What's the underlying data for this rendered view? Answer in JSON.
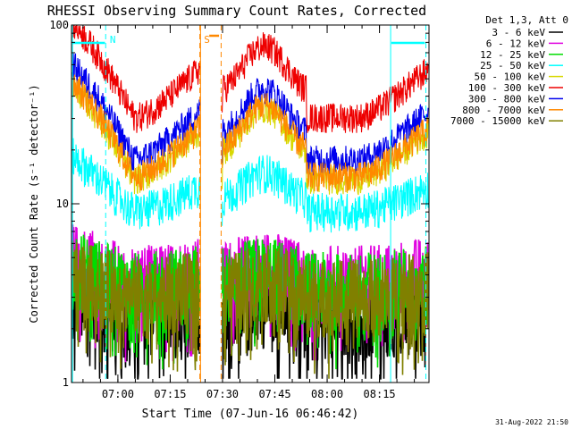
{
  "chart_data": {
    "type": "line",
    "title": "RHESSI Observing Summary Count Rates, Corrected",
    "xlabel": "Start Time (07-Jun-16 06:46:42)",
    "ylabel": "Corrected Count Rate (s⁻¹ detector⁻¹)",
    "yscale": "log",
    "ylim": [
      1,
      100
    ],
    "y_ticks": [
      {
        "value": 1,
        "label": "1"
      },
      {
        "value": 10,
        "label": "10"
      },
      {
        "value": 100,
        "label": "100"
      }
    ],
    "xlim_minutes_after_06_00": [
      46.7,
      149.2
    ],
    "x_ticks": [
      {
        "minutes": 60,
        "label": "07:00"
      },
      {
        "minutes": 75,
        "label": "07:15"
      },
      {
        "minutes": 90,
        "label": "07:30"
      },
      {
        "minutes": 105,
        "label": "07:45"
      },
      {
        "minutes": 120,
        "label": "08:00"
      },
      {
        "minutes": 135,
        "label": "08:15"
      }
    ],
    "legend_title": "Det 1,3, Att 0",
    "legend_placement": "right",
    "series": [
      {
        "name": "3 - 6 keV",
        "color": "#000000",
        "base": 2.2
      },
      {
        "name": "6 - 12 keV",
        "color": "#e000e0",
        "base": 3.6
      },
      {
        "name": "12 - 25 keV",
        "color": "#00dd00",
        "base": 3.3
      },
      {
        "name": "25 - 50 keV",
        "color": "#00ffff",
        "base": 8.0
      },
      {
        "name": "50 - 100 keV",
        "color": "#d8d800",
        "base": 14.0
      },
      {
        "name": "100 - 300 keV",
        "color": "#ee0000",
        "base": 31.0
      },
      {
        "name": "300 - 800 keV",
        "color": "#0000ee",
        "base": 18.0
      },
      {
        "name": "800 - 7000 keV",
        "color": "#ff8800",
        "base": 14.5
      },
      {
        "name": "7000 - 15000 keV",
        "color": "#808000",
        "base": 3.0
      }
    ],
    "markers": [
      {
        "label": "N",
        "kind": "SAA/N region",
        "start_minutes": 56.5,
        "color": "#00ffff"
      },
      {
        "label": "S",
        "kind": "S region",
        "start_minutes": 83.5,
        "color": "#ff8800"
      }
    ],
    "footer": "31-Aug-2022 21:50"
  }
}
